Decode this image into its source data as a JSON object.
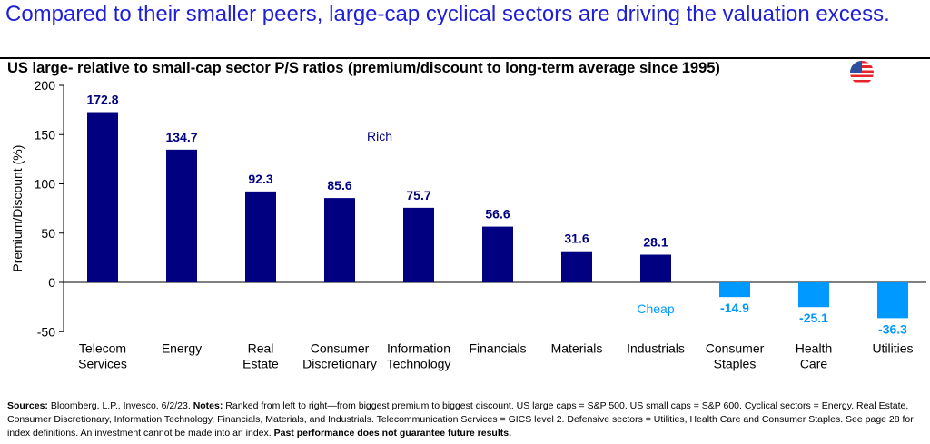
{
  "title": "Compared to their smaller peers, large-cap cyclical sectors are driving the valuation excess.",
  "subtitle": "US large- relative to small-cap sector P/S ratios (premium/discount to long-term average since 1995)",
  "flag_icon": "us-flag-icon",
  "chart_data": {
    "type": "bar",
    "categories": [
      "Telecom\nServices",
      "Energy",
      "Real\nEstate",
      "Consumer\nDiscretionary",
      "Information\nTechnology",
      "Financials",
      "Materials",
      "Industrials",
      "Consumer\nStaples",
      "Health\nCare",
      "Utilities"
    ],
    "values": [
      172.8,
      134.7,
      92.3,
      85.6,
      75.7,
      56.6,
      31.6,
      28.1,
      -14.9,
      -25.1,
      -36.3
    ],
    "data_labels": [
      "172.8",
      "134.7",
      "92.3",
      "85.6",
      "75.7",
      "56.6",
      "31.6",
      "28.1",
      "-14.9",
      "-25.1",
      "-36.3"
    ],
    "ylabel": "Premium/Discount (%)",
    "ylim": [
      -50,
      200
    ],
    "yticks": [
      "-50",
      "0",
      "50",
      "100",
      "150",
      "200"
    ],
    "grid": false,
    "annotations": {
      "rich": "Rich",
      "cheap": "Cheap"
    },
    "colors": {
      "positive": "#000080",
      "negative": "#0099ff"
    }
  },
  "footer": {
    "sources_label": "Sources:",
    "sources_text": " Bloomberg, L.P., Invesco, 6/2/23. ",
    "notes_label": "Notes:",
    "notes_text": " Ranked from left to right—from biggest premium to biggest discount. US large caps = S&P 500. US small caps = S&P 600. Cyclical sectors = Energy, Real Estate, Consumer Discretionary, Information Technology, Financials, Materials, and Industrials. Telecommunication Services = GICS level 2. Defensive sectors = Utilities, Health Care and Consumer Staples. See page 28 for index definitions. An investment cannot be made into an index. ",
    "disclaimer": "Past performance does not guarantee future results."
  }
}
